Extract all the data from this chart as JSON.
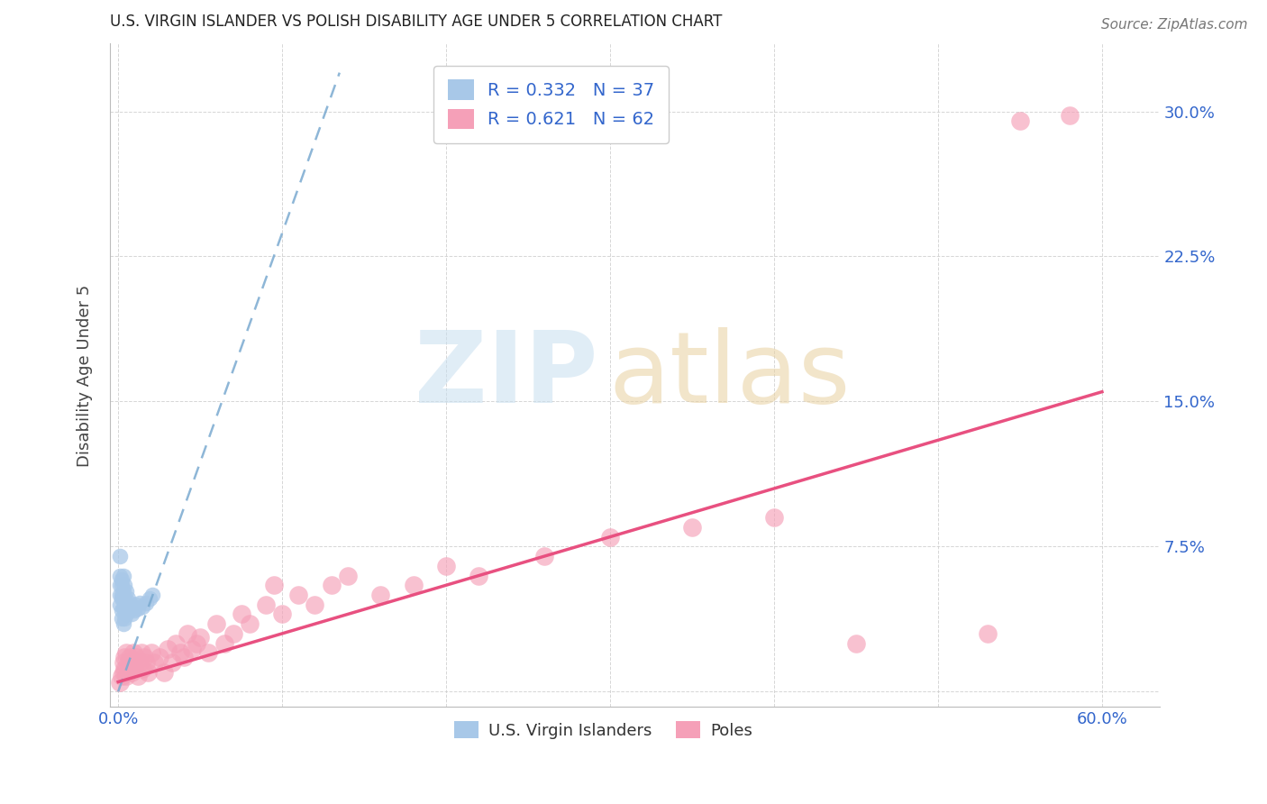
{
  "title": "U.S. VIRGIN ISLANDER VS POLISH DISABILITY AGE UNDER 5 CORRELATION CHART",
  "source": "Source: ZipAtlas.com",
  "ylabel": "Disability Age Under 5",
  "x_tick_positions": [
    0.0,
    0.1,
    0.2,
    0.3,
    0.4,
    0.5,
    0.6
  ],
  "x_tick_labels": [
    "0.0%",
    "",
    "",
    "",
    "",
    "",
    "60.0%"
  ],
  "y_tick_positions": [
    0.0,
    0.075,
    0.15,
    0.225,
    0.3
  ],
  "y_tick_labels": [
    "",
    "7.5%",
    "15.0%",
    "22.5%",
    "30.0%"
  ],
  "xlim": [
    -0.005,
    0.635
  ],
  "ylim": [
    -0.008,
    0.335
  ],
  "r_vi": 0.332,
  "n_vi": 37,
  "r_pol": 0.621,
  "n_pol": 62,
  "color_vi": "#a8c8e8",
  "color_vi_line": "#7aaad0",
  "color_pol": "#f5a0b8",
  "color_pol_line": "#e85080",
  "background_color": "#ffffff",
  "vi_x": [
    0.001,
    0.001,
    0.001,
    0.001,
    0.001,
    0.002,
    0.002,
    0.002,
    0.002,
    0.002,
    0.002,
    0.003,
    0.003,
    0.003,
    0.003,
    0.003,
    0.004,
    0.004,
    0.004,
    0.004,
    0.005,
    0.005,
    0.005,
    0.006,
    0.006,
    0.007,
    0.007,
    0.008,
    0.009,
    0.01,
    0.011,
    0.012,
    0.013,
    0.015,
    0.017,
    0.019,
    0.021
  ],
  "vi_y": [
    0.05,
    0.06,
    0.07,
    0.055,
    0.045,
    0.05,
    0.055,
    0.048,
    0.042,
    0.058,
    0.038,
    0.052,
    0.047,
    0.043,
    0.035,
    0.06,
    0.048,
    0.043,
    0.038,
    0.055,
    0.045,
    0.04,
    0.052,
    0.044,
    0.048,
    0.042,
    0.046,
    0.04,
    0.044,
    0.042,
    0.045,
    0.043,
    0.046,
    0.044,
    0.046,
    0.048,
    0.05
  ],
  "pol_x": [
    0.001,
    0.002,
    0.003,
    0.003,
    0.004,
    0.004,
    0.005,
    0.005,
    0.006,
    0.006,
    0.007,
    0.007,
    0.008,
    0.008,
    0.009,
    0.01,
    0.011,
    0.012,
    0.013,
    0.014,
    0.015,
    0.016,
    0.017,
    0.018,
    0.02,
    0.022,
    0.025,
    0.028,
    0.03,
    0.033,
    0.035,
    0.038,
    0.04,
    0.042,
    0.045,
    0.048,
    0.05,
    0.055,
    0.06,
    0.065,
    0.07,
    0.075,
    0.08,
    0.09,
    0.095,
    0.1,
    0.11,
    0.12,
    0.13,
    0.14,
    0.16,
    0.18,
    0.2,
    0.22,
    0.26,
    0.3,
    0.35,
    0.4,
    0.45,
    0.53,
    0.55,
    0.58
  ],
  "pol_y": [
    0.005,
    0.008,
    0.01,
    0.015,
    0.012,
    0.018,
    0.008,
    0.02,
    0.01,
    0.015,
    0.012,
    0.018,
    0.01,
    0.015,
    0.02,
    0.012,
    0.018,
    0.008,
    0.015,
    0.02,
    0.012,
    0.018,
    0.015,
    0.01,
    0.02,
    0.015,
    0.018,
    0.01,
    0.022,
    0.015,
    0.025,
    0.02,
    0.018,
    0.03,
    0.022,
    0.025,
    0.028,
    0.02,
    0.035,
    0.025,
    0.03,
    0.04,
    0.035,
    0.045,
    0.055,
    0.04,
    0.05,
    0.045,
    0.055,
    0.06,
    0.05,
    0.055,
    0.065,
    0.06,
    0.07,
    0.08,
    0.085,
    0.09,
    0.025,
    0.03,
    0.295,
    0.298
  ],
  "vi_line_x": [
    0.0,
    0.135
  ],
  "vi_line_y": [
    0.0,
    0.32
  ],
  "pol_line_x": [
    0.0,
    0.6
  ],
  "pol_line_y": [
    0.005,
    0.155
  ]
}
